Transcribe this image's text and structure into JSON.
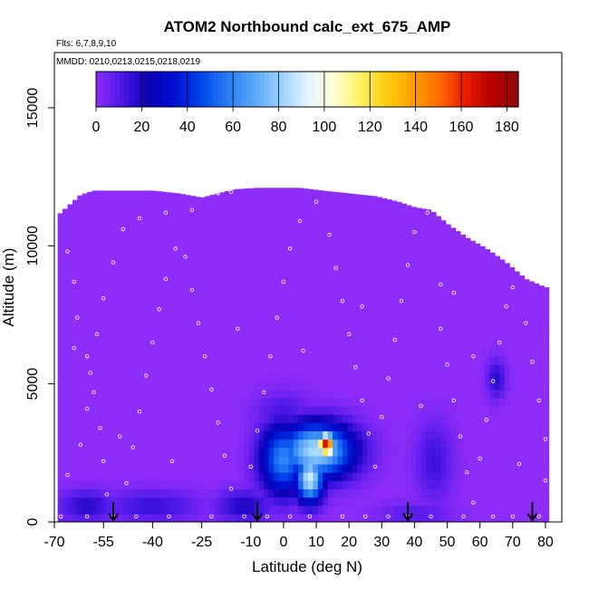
{
  "chart_data": {
    "type": "heatmap",
    "title": "ATOM2 Northbound calc_ext_675_AMP",
    "subtitle_flights": "Flts: 6,7,8,9,10",
    "subtitle_dates": "MMDD: 0210,0213,0215,0218,0219",
    "xlabel": "Latitude (deg N)",
    "ylabel": "Altitude (m)",
    "xlim": [
      -70,
      85
    ],
    "ylim": [
      0,
      17000
    ],
    "x_ticks": [
      -70,
      -55,
      -40,
      -25,
      -10,
      0,
      10,
      20,
      30,
      40,
      50,
      60,
      70,
      80
    ],
    "y_ticks": [
      0,
      5000,
      10000,
      15000
    ],
    "colorbar": {
      "ticks": [
        0,
        20,
        40,
        60,
        80,
        100,
        120,
        140,
        160,
        180
      ],
      "range": [
        0,
        185
      ],
      "colors": [
        "#8e2cf8",
        "#4a17e6",
        "#0a00b4",
        "#0010d2",
        "#0046ea",
        "#2a7ef4",
        "#5aa8fa",
        "#99d0fc",
        "#e2f4ff",
        "#ffffd8",
        "#fff266",
        "#ffcc10",
        "#ffa000",
        "#ff6a00",
        "#e81c00",
        "#b80000",
        "#8c0808"
      ]
    },
    "background_value": 0,
    "altitude_ceiling": [
      {
        "lat": -69,
        "alt": 11100
      },
      {
        "lat": -62,
        "alt": 11850
      },
      {
        "lat": -58,
        "alt": 12000
      },
      {
        "lat": -50,
        "alt": 12000
      },
      {
        "lat": -40,
        "alt": 12000
      },
      {
        "lat": -32,
        "alt": 11900
      },
      {
        "lat": -25,
        "alt": 11750
      },
      {
        "lat": -15,
        "alt": 12050
      },
      {
        "lat": -8,
        "alt": 12100
      },
      {
        "lat": 5,
        "alt": 12100
      },
      {
        "lat": 12,
        "alt": 12000
      },
      {
        "lat": 20,
        "alt": 11900
      },
      {
        "lat": 28,
        "alt": 11800
      },
      {
        "lat": 35,
        "alt": 11600
      },
      {
        "lat": 40,
        "alt": 11400
      },
      {
        "lat": 45,
        "alt": 11300
      },
      {
        "lat": 50,
        "alt": 10800
      },
      {
        "lat": 56,
        "alt": 10300
      },
      {
        "lat": 62,
        "alt": 9900
      },
      {
        "lat": 68,
        "alt": 9400
      },
      {
        "lat": 74,
        "alt": 8800
      },
      {
        "lat": 80,
        "alt": 8500
      }
    ],
    "plumes": [
      {
        "lat": 10,
        "alt": 2600,
        "sigma_lat": 8,
        "sigma_alt": 700,
        "value": 85
      },
      {
        "lat": 0,
        "alt": 2300,
        "sigma_lat": 5,
        "sigma_alt": 900,
        "value": 60
      },
      {
        "lat": 13,
        "alt": 2800,
        "sigma_lat": 2,
        "sigma_alt": 300,
        "value": 170
      },
      {
        "lat": 8,
        "alt": 1600,
        "sigma_lat": 3,
        "sigma_alt": 600,
        "value": 90
      },
      {
        "lat": -60,
        "alt": 600,
        "sigma_lat": 6,
        "sigma_alt": 400,
        "value": 18
      },
      {
        "lat": -40,
        "alt": 600,
        "sigma_lat": 10,
        "sigma_alt": 400,
        "value": 15
      },
      {
        "lat": -12,
        "alt": 600,
        "sigma_lat": 6,
        "sigma_alt": 400,
        "value": 20
      },
      {
        "lat": 0,
        "alt": 4000,
        "sigma_lat": 6,
        "sigma_alt": 500,
        "value": 12
      },
      {
        "lat": 46,
        "alt": 2200,
        "sigma_lat": 4,
        "sigma_alt": 1000,
        "value": 14
      },
      {
        "lat": 65,
        "alt": 5200,
        "sigma_lat": 2,
        "sigma_alt": 500,
        "value": 18
      },
      {
        "lat": 40,
        "alt": 300,
        "sigma_lat": 8,
        "sigma_alt": 300,
        "value": 10
      }
    ],
    "flight_track_points": [
      [
        -68,
        200
      ],
      [
        -60,
        200
      ],
      [
        -52,
        200
      ],
      [
        -45,
        200
      ],
      [
        -35,
        200
      ],
      [
        -22,
        200
      ],
      [
        -12,
        200
      ],
      [
        -5,
        200
      ],
      [
        2,
        200
      ],
      [
        8,
        200
      ],
      [
        18,
        200
      ],
      [
        25,
        200
      ],
      [
        32,
        200
      ],
      [
        38,
        200
      ],
      [
        45,
        200
      ],
      [
        55,
        200
      ],
      [
        64,
        200
      ],
      [
        70,
        200
      ],
      [
        78,
        200
      ],
      [
        -66,
        1700
      ],
      [
        -62,
        2800
      ],
      [
        -60,
        4100
      ],
      [
        -59,
        5400
      ],
      [
        -57,
        6800
      ],
      [
        -55,
        8100
      ],
      [
        -52,
        9400
      ],
      [
        -49,
        10600
      ],
      [
        -44,
        11000
      ],
      [
        -36,
        11200
      ],
      [
        -28,
        11300
      ],
      [
        -20,
        11900
      ],
      [
        -16,
        11950
      ],
      [
        -66,
        9800
      ],
      [
        -64,
        8700
      ],
      [
        -63,
        7400
      ],
      [
        -60,
        6000
      ],
      [
        -58,
        4700
      ],
      [
        -56,
        3400
      ],
      [
        -55,
        2200
      ],
      [
        -54,
        1000
      ],
      [
        -48,
        1400
      ],
      [
        -46,
        2700
      ],
      [
        -44,
        4000
      ],
      [
        -42,
        5300
      ],
      [
        -40,
        6500
      ],
      [
        -38,
        7700
      ],
      [
        -36,
        8800
      ],
      [
        -33,
        9900
      ],
      [
        -30,
        9600
      ],
      [
        -28,
        8400
      ],
      [
        -26,
        7200
      ],
      [
        -24,
        6000
      ],
      [
        -22,
        4800
      ],
      [
        -20,
        3600
      ],
      [
        -18,
        2400
      ],
      [
        -16,
        1200
      ],
      [
        -10,
        2000
      ],
      [
        -8,
        3300
      ],
      [
        -6,
        4700
      ],
      [
        -4,
        6000
      ],
      [
        -2,
        7400
      ],
      [
        0,
        8700
      ],
      [
        2,
        9900
      ],
      [
        5,
        10900
      ],
      [
        10,
        11600
      ],
      [
        14,
        10400
      ],
      [
        16,
        9200
      ],
      [
        18,
        8000
      ],
      [
        20,
        6800
      ],
      [
        22,
        5600
      ],
      [
        24,
        4400
      ],
      [
        26,
        3200
      ],
      [
        28,
        2000
      ],
      [
        30,
        3800
      ],
      [
        32,
        5200
      ],
      [
        34,
        6600
      ],
      [
        36,
        8000
      ],
      [
        38,
        9300
      ],
      [
        40,
        10500
      ],
      [
        44,
        11200
      ],
      [
        48,
        8600
      ],
      [
        52,
        8300
      ],
      [
        48,
        7000
      ],
      [
        50,
        5700
      ],
      [
        52,
        4400
      ],
      [
        54,
        3100
      ],
      [
        56,
        1800
      ],
      [
        58,
        700
      ],
      [
        60,
        2300
      ],
      [
        62,
        3700
      ],
      [
        64,
        5100
      ],
      [
        66,
        6500
      ],
      [
        68,
        7800
      ],
      [
        70,
        8500
      ],
      [
        74,
        7200
      ],
      [
        76,
        5800
      ],
      [
        78,
        4400
      ],
      [
        80,
        3000
      ],
      [
        80,
        1500
      ],
      [
        -64,
        6300
      ],
      [
        -50,
        3100
      ],
      [
        -34,
        2200
      ],
      [
        -14,
        7000
      ],
      [
        6,
        6200
      ],
      [
        24,
        7800
      ],
      [
        42,
        4200
      ],
      [
        58,
        6000
      ],
      [
        72,
        2100
      ]
    ],
    "arrows_lat": [
      -52,
      -8,
      38,
      76
    ]
  }
}
